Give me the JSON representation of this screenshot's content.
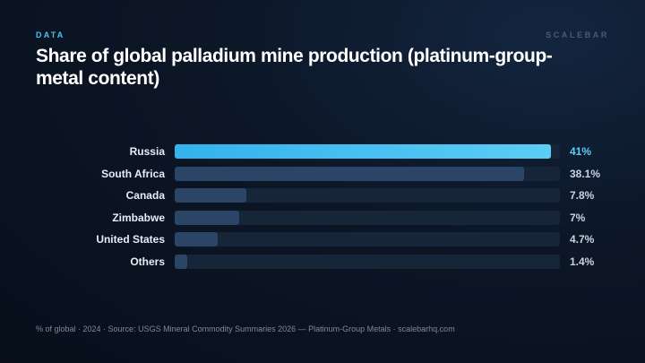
{
  "header": {
    "eyebrow": "DATA",
    "brand": "SCALEBAR",
    "title": "Share of global palladium mine production (platinum-group-metal content)"
  },
  "chart_data": {
    "type": "bar",
    "orientation": "horizontal",
    "categories": [
      "Russia",
      "South Africa",
      "Canada",
      "Zimbabwe",
      "United States",
      "Others"
    ],
    "values": [
      41,
      38.1,
      7.8,
      7,
      4.7,
      1.4
    ],
    "value_labels": [
      "41%",
      "38.1%",
      "7.8%",
      "7%",
      "4.7%",
      "1.4%"
    ],
    "xlim": [
      0,
      42
    ],
    "highlight_category": "Russia",
    "colors": {
      "highlight": "#4cc3f0",
      "bar": "#2a4566",
      "track": "#172538"
    }
  },
  "footer": {
    "note": "% of global · 2024 · Source: USGS Mineral Commodity Summaries 2026 — Platinum-Group Metals · scalebarhq.com"
  }
}
